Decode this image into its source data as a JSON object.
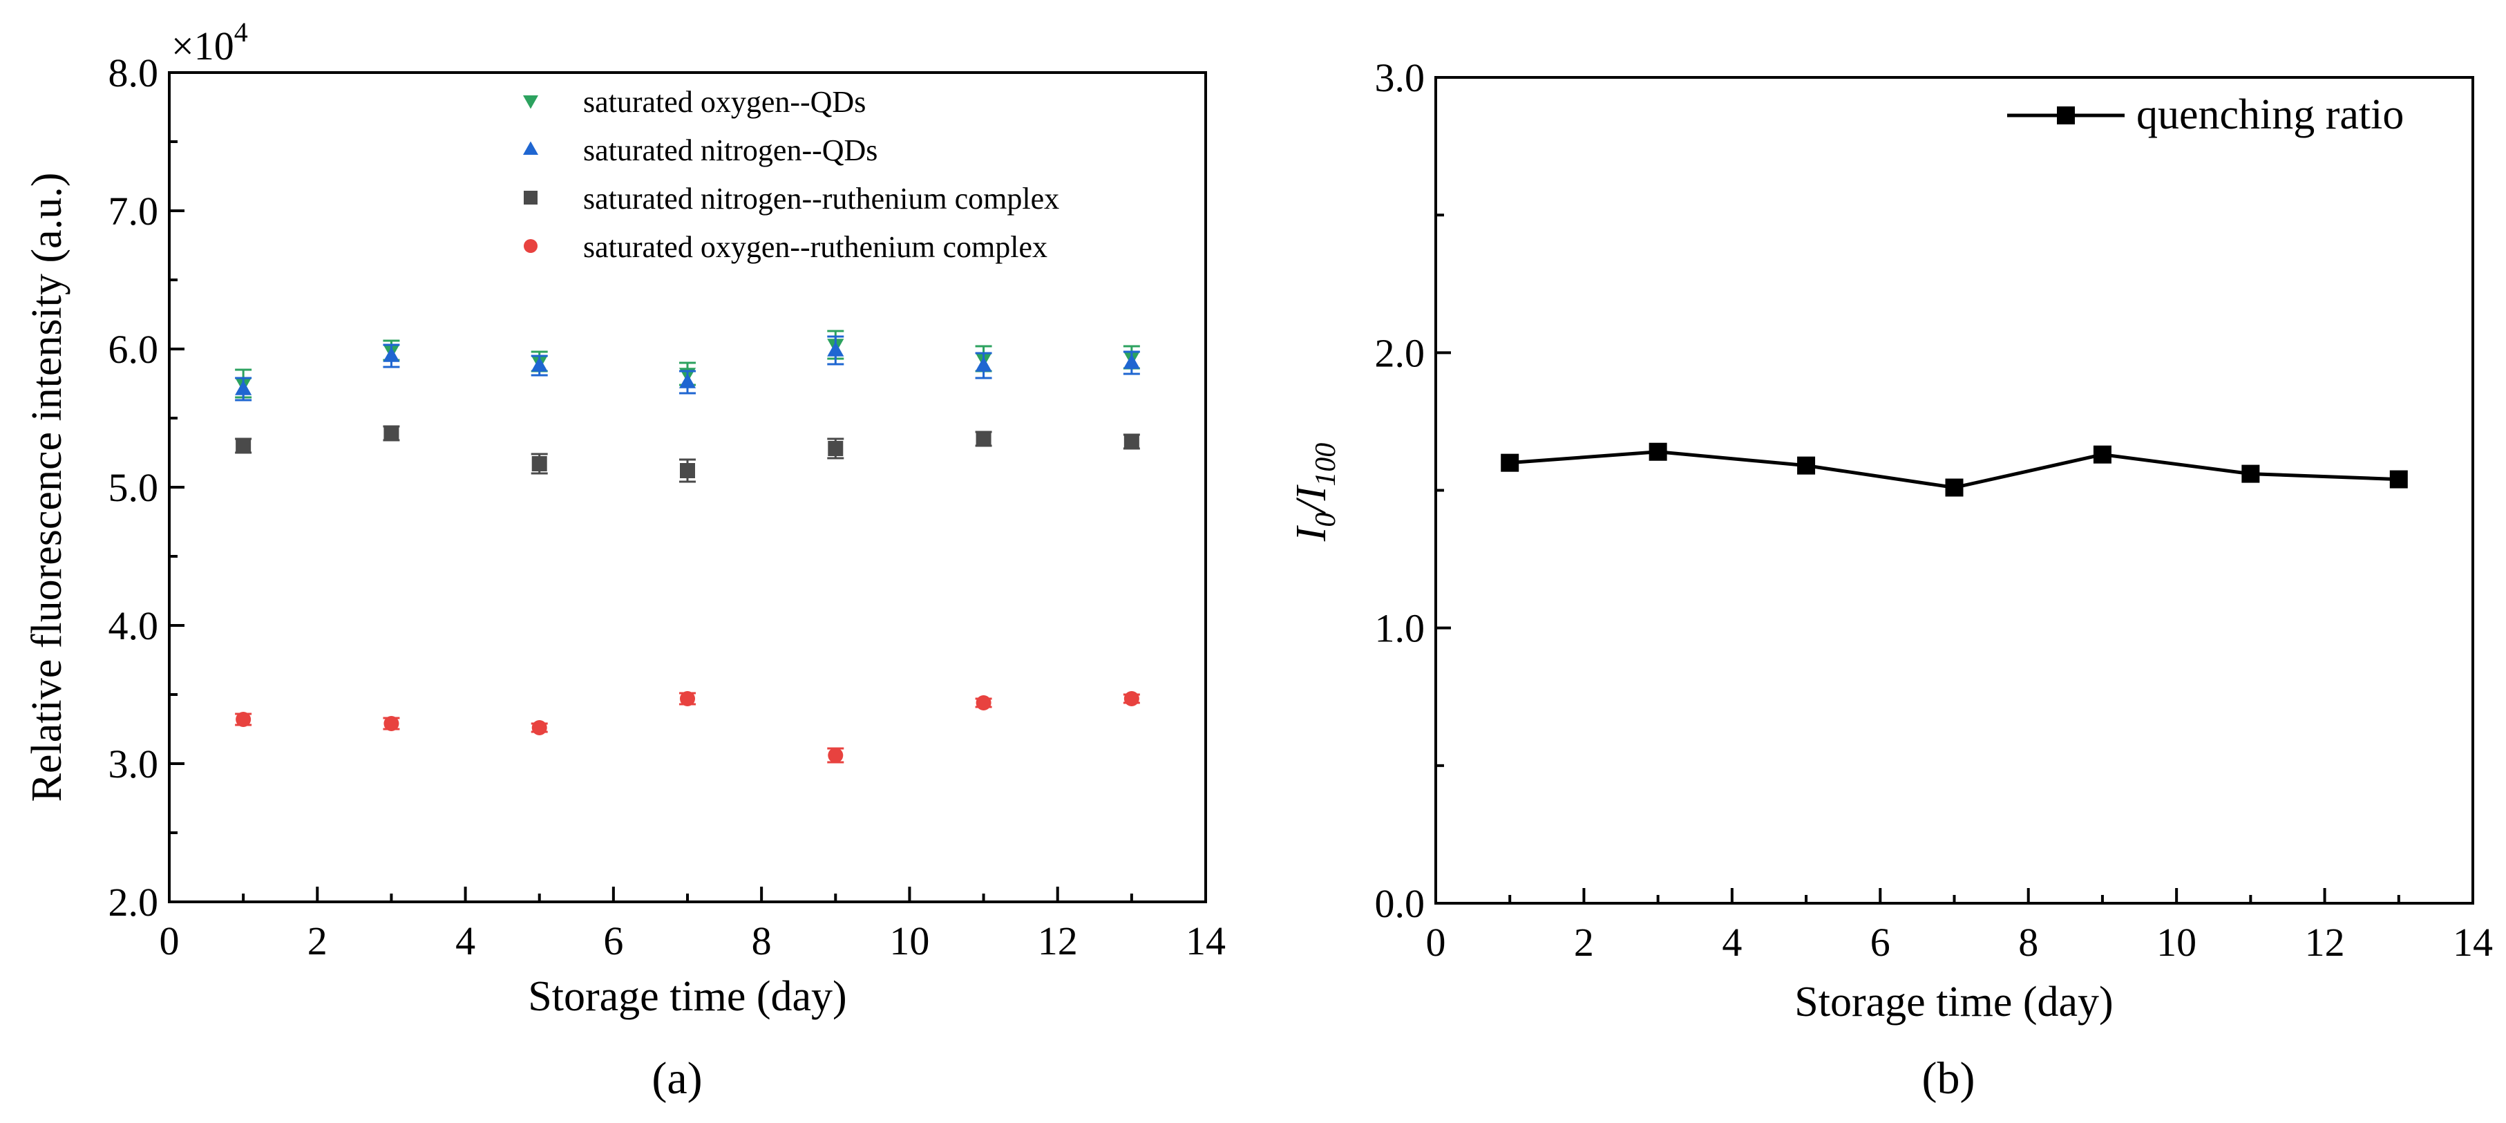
{
  "chart_data": [
    {
      "panel": "(a)",
      "type": "scatter",
      "xlabel": "Storage time (day)",
      "ylabel": "Relative fluorescence intensity (a.u.)",
      "y_multiplier_label": "×10",
      "y_multiplier_exp": "4",
      "xlim": [
        0,
        14
      ],
      "ylim": [
        2.0,
        8.0
      ],
      "x_ticks": [
        0,
        2,
        4,
        6,
        8,
        10,
        12,
        14
      ],
      "y_ticks": [
        2.0,
        3.0,
        4.0,
        5.0,
        6.0,
        7.0,
        8.0
      ],
      "legend_position": "top-center",
      "x": [
        1,
        3,
        5,
        7,
        9,
        11,
        13
      ],
      "series": [
        {
          "name": "saturated oxygen--QDs",
          "marker": "triangle-down",
          "color": "#2ca25f",
          "values": [
            5.75,
            5.99,
            5.91,
            5.82,
            6.03,
            5.93,
            5.94
          ],
          "errors": [
            0.1,
            0.07,
            0.07,
            0.08,
            0.1,
            0.09,
            0.08
          ]
        },
        {
          "name": "saturated nitrogen--QDs",
          "marker": "triangle-up",
          "color": "#1f66d1",
          "values": [
            5.71,
            5.95,
            5.88,
            5.76,
            5.99,
            5.88,
            5.9
          ],
          "errors": [
            0.08,
            0.08,
            0.07,
            0.08,
            0.1,
            0.09,
            0.08
          ]
        },
        {
          "name": "saturated nitrogen--ruthenium complex",
          "marker": "square",
          "color": "#4a4a4a",
          "values": [
            5.3,
            5.39,
            5.17,
            5.12,
            5.28,
            5.35,
            5.33
          ],
          "errors": [
            0.05,
            0.05,
            0.07,
            0.08,
            0.07,
            0.05,
            0.05
          ]
        },
        {
          "name": "saturated oxygen--ruthenium complex",
          "marker": "circle",
          "color": "#e8423f",
          "values": [
            3.32,
            3.29,
            3.26,
            3.47,
            3.06,
            3.44,
            3.47
          ],
          "errors": [
            0.04,
            0.04,
            0.03,
            0.04,
            0.05,
            0.03,
            0.03
          ]
        }
      ]
    },
    {
      "panel": "(b)",
      "type": "line",
      "xlabel": "Storage time (day)",
      "ylabel_main": "I",
      "ylabel_sub_num": "0",
      "ylabel_sep": "/I",
      "ylabel_sub_den": "100",
      "xlim": [
        0,
        14
      ],
      "ylim": [
        0.0,
        3.0
      ],
      "x_ticks": [
        0,
        2,
        4,
        6,
        8,
        10,
        12,
        14
      ],
      "y_ticks": [
        0.0,
        1.0,
        2.0,
        3.0
      ],
      "legend_position": "top-right",
      "x": [
        1,
        3,
        5,
        7,
        9,
        11,
        13
      ],
      "series": [
        {
          "name": "quenching ratio",
          "marker": "square",
          "color": "#000000",
          "values": [
            1.6,
            1.64,
            1.59,
            1.51,
            1.63,
            1.56,
            1.54
          ]
        }
      ]
    }
  ]
}
